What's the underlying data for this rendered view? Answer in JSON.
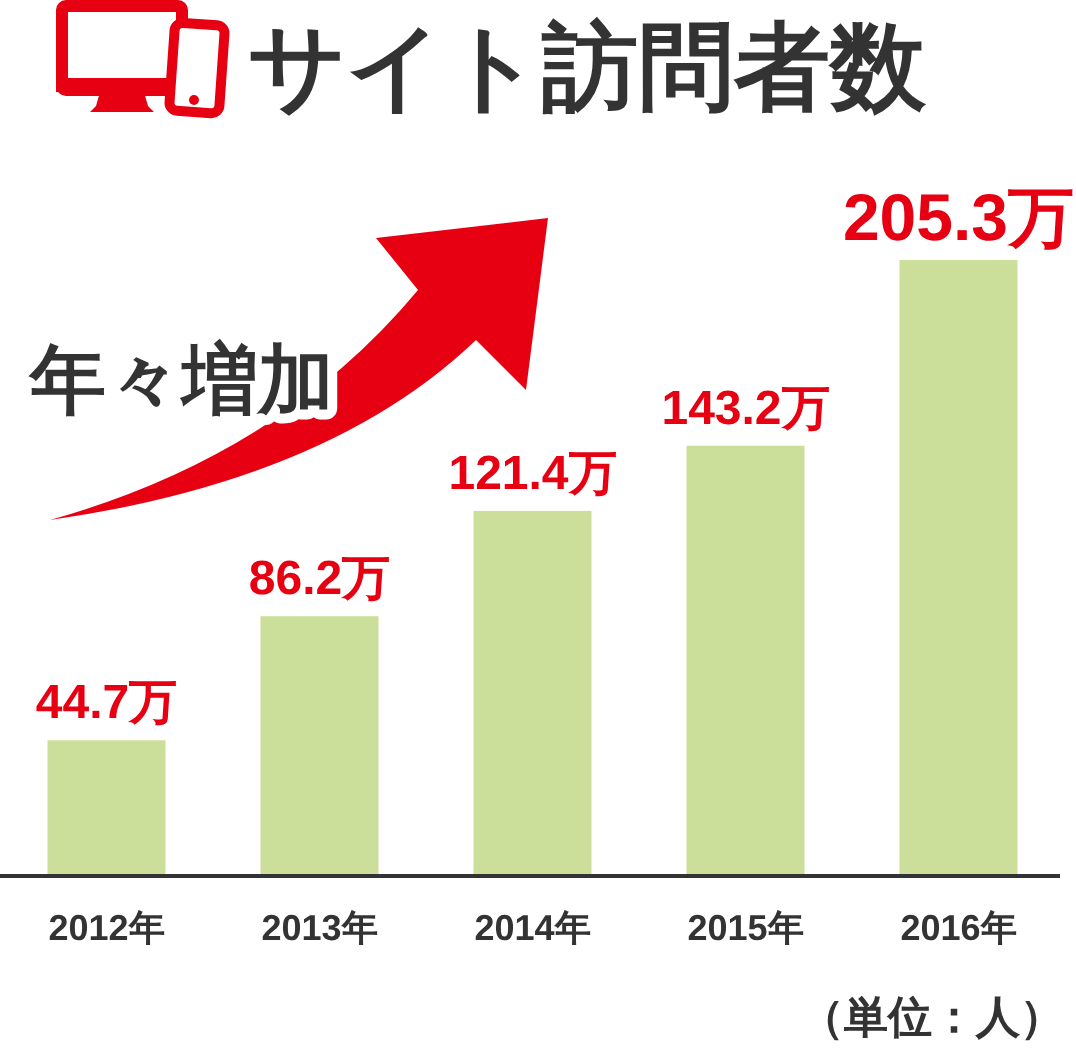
{
  "chart_data": {
    "type": "bar",
    "title": "サイト訪問者数",
    "categories": [
      "2012年",
      "2013年",
      "2014年",
      "2015年",
      "2016年"
    ],
    "values": [
      44.7,
      86.2,
      121.4,
      143.2,
      205.3
    ],
    "value_labels": [
      "44.7万",
      "86.2万",
      "121.4万",
      "143.2万",
      "205.3万"
    ],
    "color": "#cbdf9a",
    "annotations": [
      "年々増加",
      "（単位：人）"
    ]
  }
}
